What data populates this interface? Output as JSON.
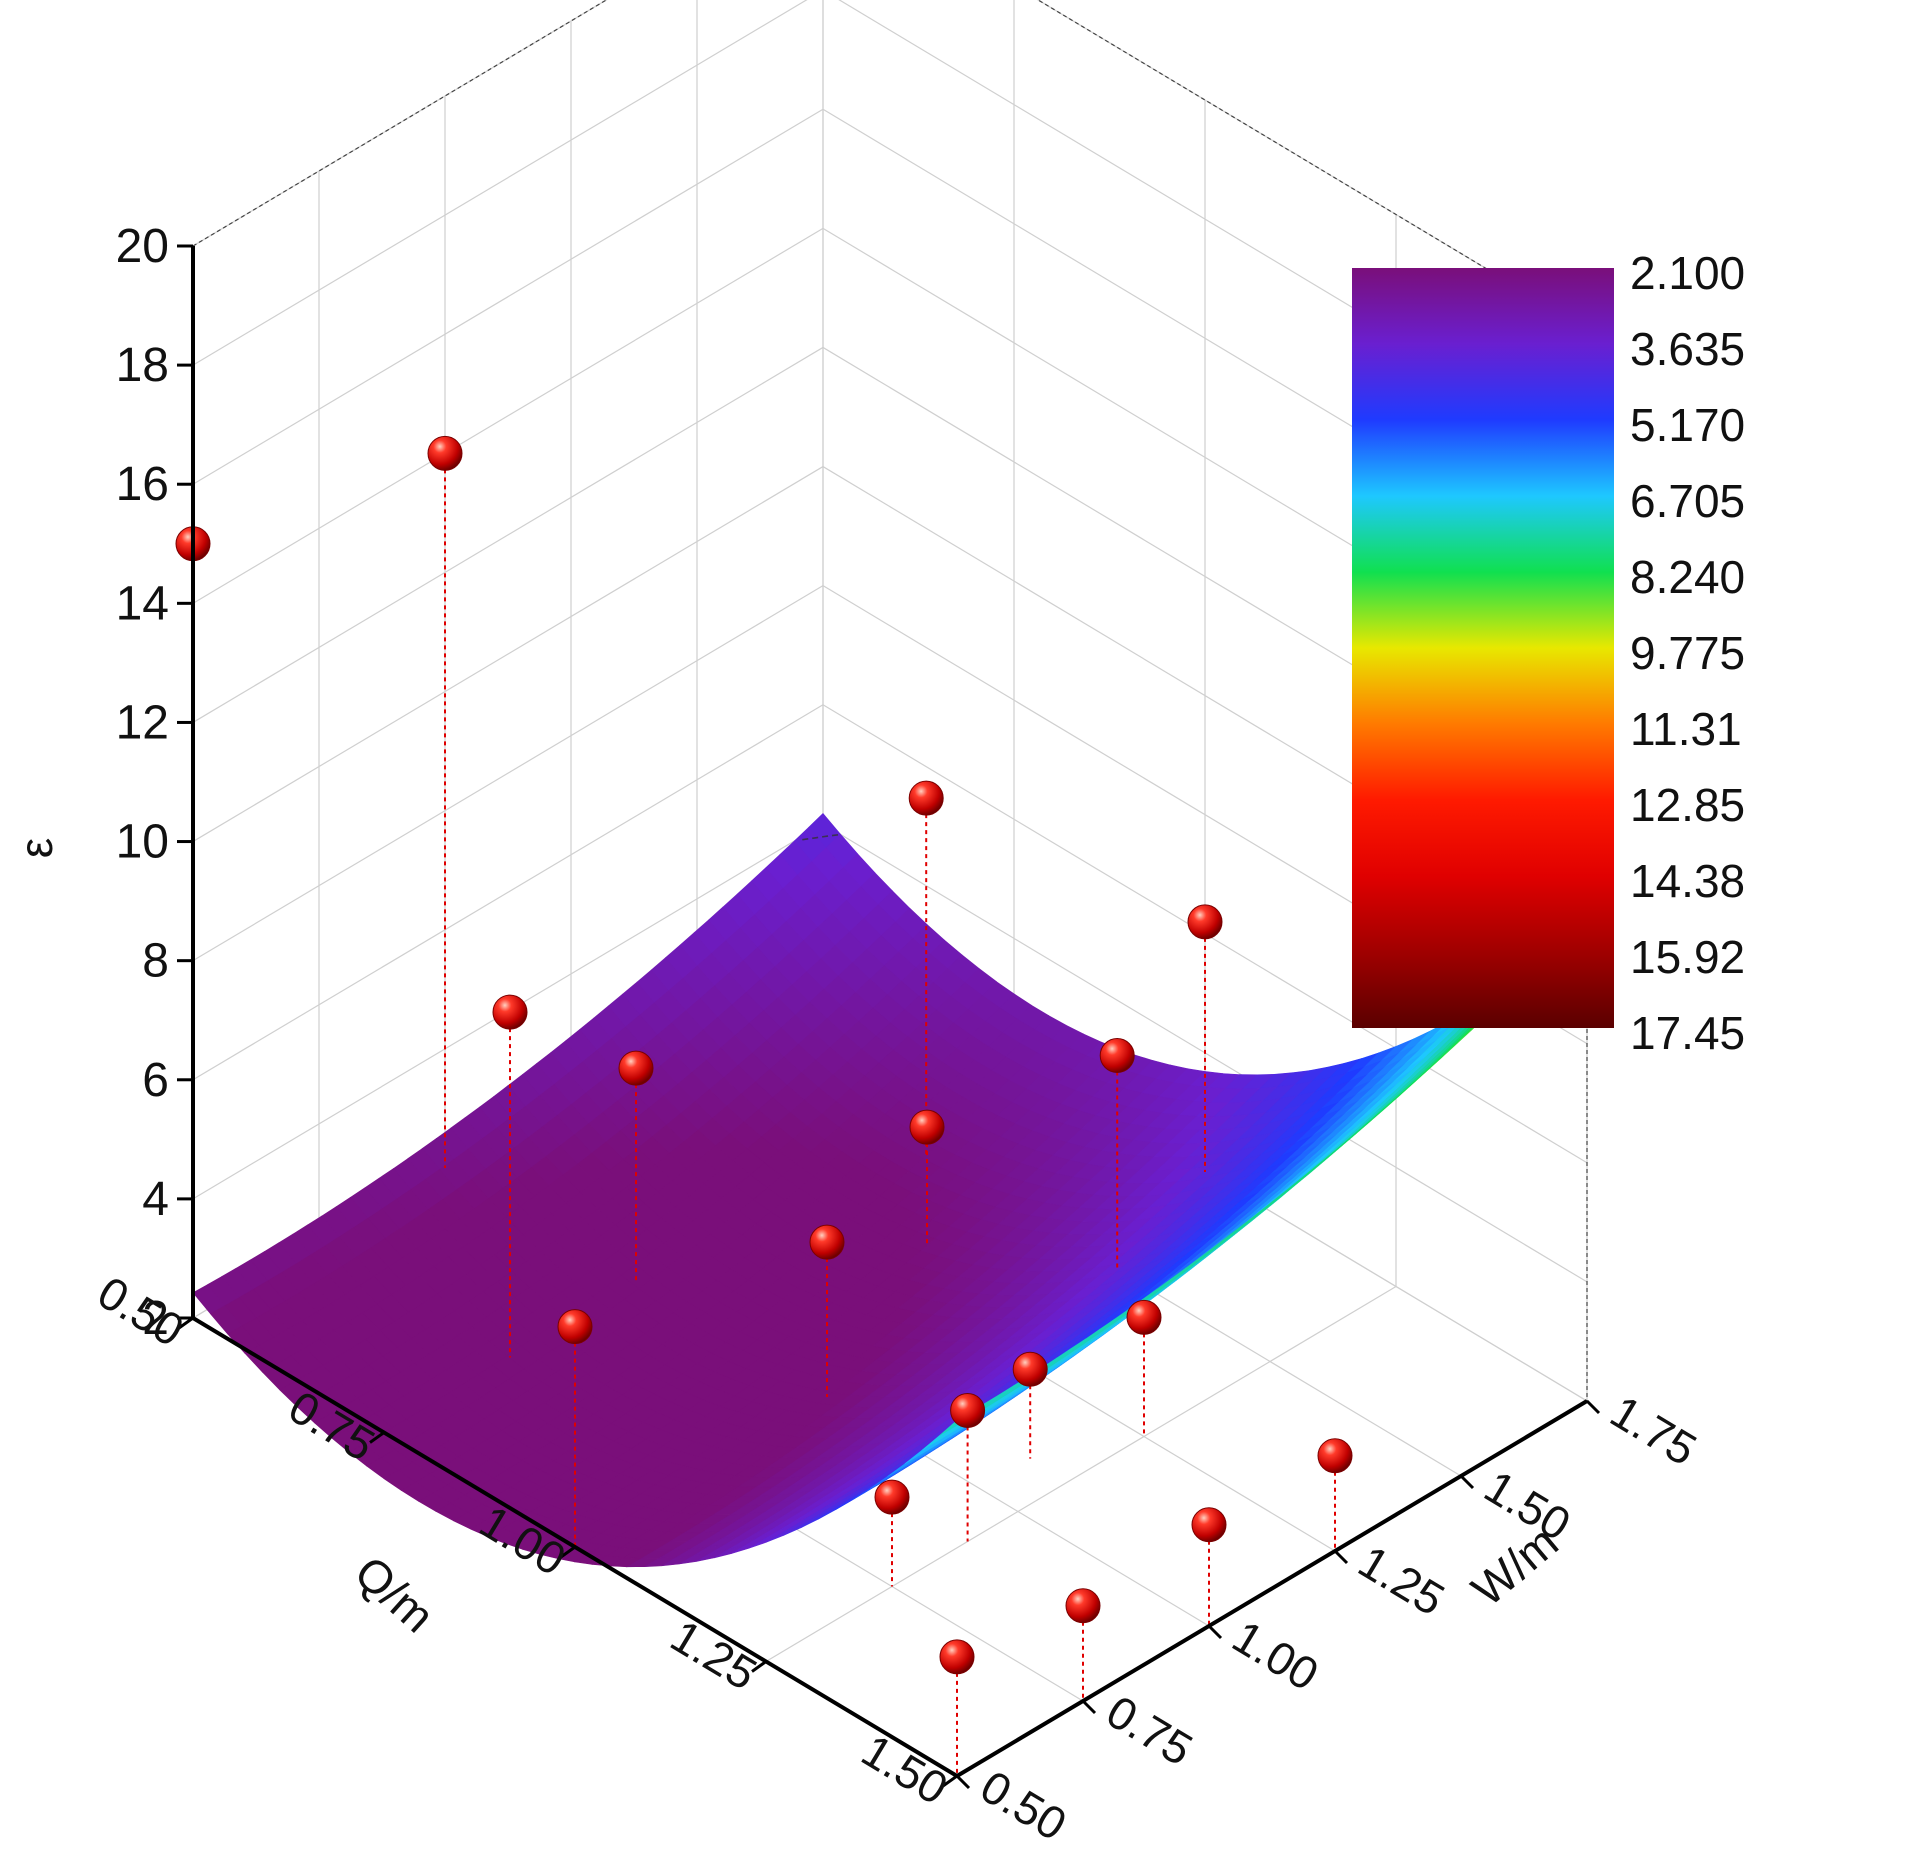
{
  "chart_data": {
    "type": "surface3d",
    "title": "",
    "xlabel": "Q/m",
    "ylabel": "W/m",
    "zlabel": "ε",
    "xlim": [
      0.5,
      1.5
    ],
    "ylim": [
      0.5,
      1.75
    ],
    "zlim": [
      2,
      20
    ],
    "x_ticks": [
      "0.50",
      "0.75",
      "1.00",
      "1.25",
      "1.50"
    ],
    "y_ticks": [
      "0.50",
      "0.75",
      "1.00",
      "1.25",
      "1.50",
      "1.75"
    ],
    "z_ticks": [
      "2",
      "4",
      "6",
      "8",
      "10",
      "12",
      "14",
      "16",
      "18",
      "20"
    ],
    "grid": true,
    "colorbar": {
      "labels": [
        "2.100",
        "3.635",
        "5.170",
        "6.705",
        "8.240",
        "9.775",
        "11.31",
        "12.85",
        "14.38",
        "15.92",
        "17.45"
      ],
      "colors": [
        "#7a0f7a",
        "#6a1fd0",
        "#1f3bff",
        "#1ec8ff",
        "#10e050",
        "#e8e800",
        "#ff7a00",
        "#ff1a00",
        "#e00000",
        "#a00000",
        "#5a0000"
      ]
    },
    "surface": {
      "equation": "z = 10.6 - 22.2*x - 1.9*y + 13.8*x^2 + 1.4*y^2 + 0.3*x*y",
      "min": 2.1,
      "max": 17.45
    },
    "points": [
      {
        "x": 0.5,
        "y": 0.5,
        "z": 15.0
      },
      {
        "x": 0.5,
        "y": 1.0,
        "z": 14.0
      },
      {
        "x": 0.75,
        "y": 0.75,
        "z": 7.8
      },
      {
        "x": 0.75,
        "y": 1.0,
        "z": 5.6
      },
      {
        "x": 1.0,
        "y": 0.5,
        "z": 5.7
      },
      {
        "x": 1.0,
        "y": 1.0,
        "z": 4.6
      },
      {
        "x": 0.8,
        "y": 1.5,
        "z": 8.0
      },
      {
        "x": 0.9,
        "y": 1.35,
        "z": 4.0
      },
      {
        "x": 1.25,
        "y": 0.75,
        "z": 3.5
      },
      {
        "x": 1.0,
        "y": 1.75,
        "z": 6.2
      },
      {
        "x": 1.05,
        "y": 1.5,
        "z": 5.6
      },
      {
        "x": 1.25,
        "y": 0.9,
        "z": 4.2
      },
      {
        "x": 1.2,
        "y": 1.1,
        "z": 3.5
      },
      {
        "x": 1.25,
        "y": 1.25,
        "z": 4.0
      },
      {
        "x": 1.5,
        "y": 0.5,
        "z": 4.0
      },
      {
        "x": 1.5,
        "y": 0.75,
        "z": 3.6
      },
      {
        "x": 1.5,
        "y": 1.0,
        "z": 3.7
      },
      {
        "x": 1.5,
        "y": 1.25,
        "z": 3.6
      }
    ]
  }
}
